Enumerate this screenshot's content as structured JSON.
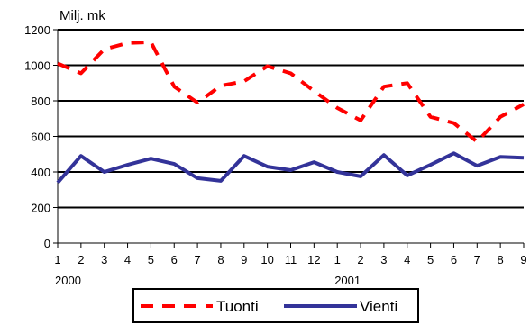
{
  "chart_data": {
    "type": "line",
    "y_unit_label": "Milj. mk",
    "ylim": [
      0,
      1200
    ],
    "y_ticks": [
      "0",
      "200",
      "400",
      "600",
      "800",
      "1000",
      "1200"
    ],
    "y_tick_values": [
      0,
      200,
      400,
      600,
      800,
      1000,
      1200
    ],
    "x": [
      "1",
      "2",
      "3",
      "4",
      "5",
      "6",
      "7",
      "8",
      "9",
      "10",
      "11",
      "12",
      "1",
      "2",
      "3",
      "4",
      "5",
      "6",
      "7",
      "8",
      "9"
    ],
    "x_groups": [
      {
        "label": "2000",
        "start_index": 0
      },
      {
        "label": "2001",
        "start_index": 12
      }
    ],
    "grid": "horizontal",
    "legend_position": "bottom",
    "series": [
      {
        "name": "Tuonti",
        "color": "#ff0000",
        "style": "dashed",
        "values": [
          1010,
          955,
          1090,
          1125,
          1130,
          880,
          790,
          885,
          910,
          995,
          955,
          855,
          760,
          690,
          880,
          900,
          710,
          675,
          570,
          710,
          780
        ]
      },
      {
        "name": "Vienti",
        "color": "#333399",
        "style": "solid",
        "values": [
          340,
          490,
          400,
          440,
          475,
          445,
          365,
          350,
          490,
          430,
          410,
          455,
          400,
          375,
          495,
          380,
          440,
          505,
          435,
          485,
          480
        ]
      }
    ]
  }
}
